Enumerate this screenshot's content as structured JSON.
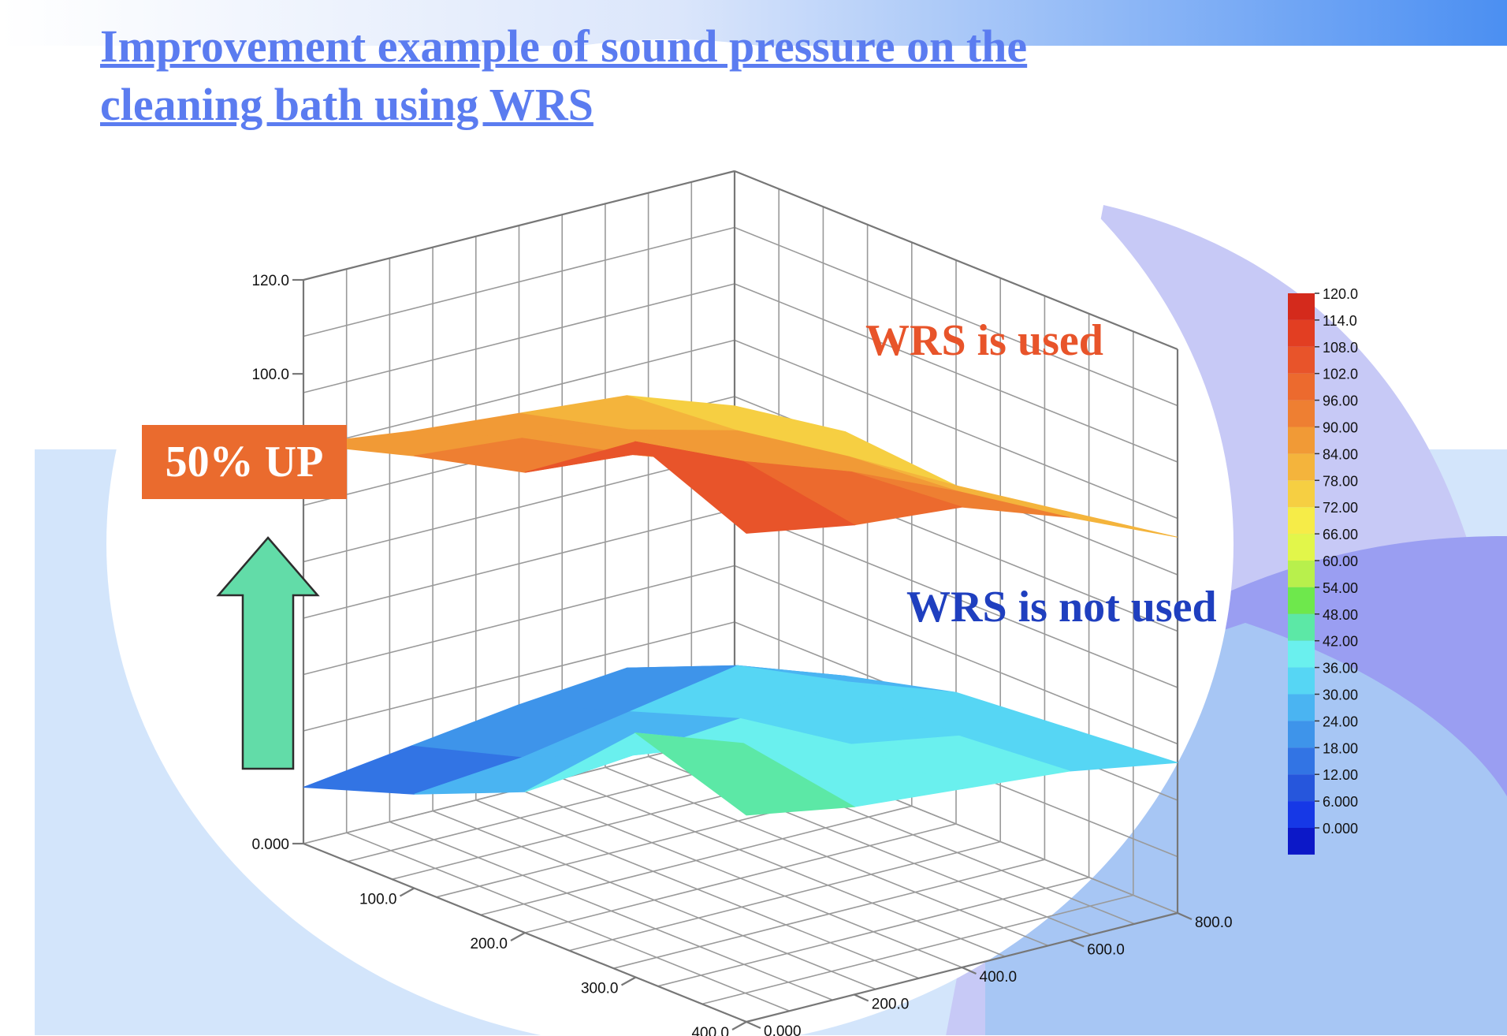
{
  "slide": {
    "title_line1": "Improvement example of sound pressure on the",
    "title_line2": "cleaning bath using WRS",
    "badge": "50% UP",
    "label_used": "WRS is used",
    "label_not_used": "WRS is not used",
    "colors": {
      "title": "#5b7cf0",
      "badge_bg": "#ea6b2e",
      "arrow_fill": "#62dca8",
      "label_used": "#e8542a",
      "label_not_used": "#1f3fbf"
    }
  },
  "chart_data": {
    "type": "surface3d",
    "z_ticks": [
      "0.000",
      "100.0",
      "120.0"
    ],
    "x_ticks": [
      "100.0",
      "200.0",
      "300.0",
      "400.0"
    ],
    "y_ticks": [
      "0.000",
      "200.0",
      "400.0",
      "600.0",
      "800.0"
    ],
    "zlim": [
      0,
      120
    ],
    "xlim": [
      0,
      400
    ],
    "ylim": [
      0,
      800
    ],
    "grid": true,
    "colorbar": {
      "ticks": [
        "120.0",
        "114.0",
        "108.0",
        "102.0",
        "96.00",
        "90.00",
        "84.00",
        "78.00",
        "72.00",
        "66.00",
        "60.00",
        "54.00",
        "48.00",
        "42.00",
        "36.00",
        "30.00",
        "24.00",
        "18.00",
        "12.00",
        "6.000",
        "0.000"
      ],
      "colors": [
        "#d42a1c",
        "#e23e22",
        "#e8542a",
        "#ec6a2e",
        "#ee7f32",
        "#f19a36",
        "#f4b43c",
        "#f6cf42",
        "#f6ec48",
        "#e2f64a",
        "#b8f04c",
        "#6ee84c",
        "#5ce8a6",
        "#6af0ee",
        "#56d6f4",
        "#4ab4f2",
        "#3e94ea",
        "#3274e4",
        "#2656dc",
        "#1638e6",
        "#0c18c8"
      ]
    },
    "series": [
      {
        "name": "WRS is used",
        "x": [
          0,
          100,
          200,
          300,
          400
        ],
        "y": [
          0,
          200,
          400,
          600,
          800
        ],
        "z": [
          [
            85,
            82,
            80,
            78,
            70
          ],
          [
            92,
            90,
            86,
            80,
            74
          ],
          [
            98,
            96,
            88,
            84,
            72
          ],
          [
            114,
            104,
            96,
            86,
            76
          ],
          [
            104,
            100,
            98,
            90,
            80
          ]
        ]
      },
      {
        "name": "WRS is not used",
        "x": [
          0,
          100,
          200,
          300,
          400
        ],
        "y": [
          0,
          200,
          400,
          600,
          800
        ],
        "z": [
          [
            12,
            15,
            18,
            20,
            14
          ],
          [
            20,
            22,
            26,
            30,
            22
          ],
          [
            30,
            32,
            34,
            36,
            28
          ],
          [
            52,
            44,
            38,
            34,
            30
          ],
          [
            44,
            40,
            38,
            36,
            32
          ]
        ]
      }
    ]
  }
}
